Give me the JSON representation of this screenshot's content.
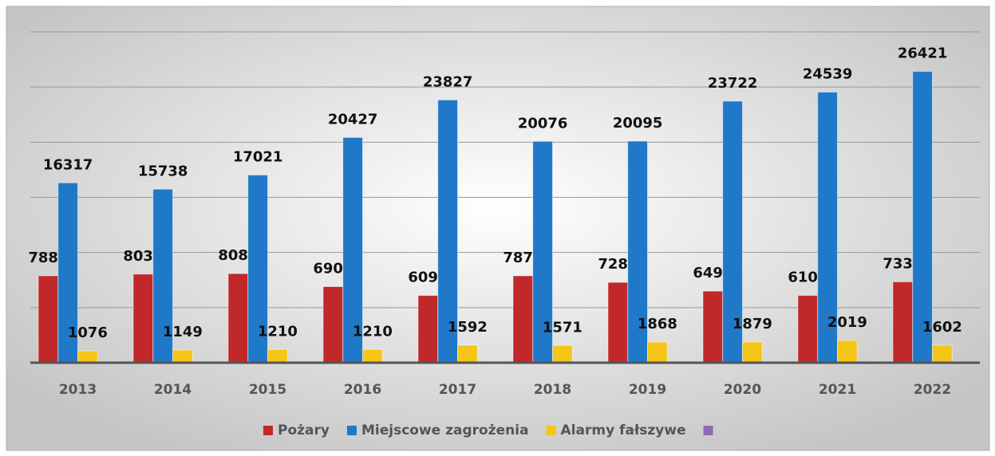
{
  "chart_data": {
    "type": "bar",
    "categories": [
      "2013",
      "2014",
      "2015",
      "2016",
      "2017",
      "2018",
      "2019",
      "2020",
      "2021",
      "2022"
    ],
    "series": [
      {
        "name": "Pożary",
        "color": "#c0282a",
        "values": [
          7881,
          8033,
          8081,
          6902,
          6099,
          7879,
          7287,
          6496,
          6101,
          7336
        ]
      },
      {
        "name": "Miejscowe zagrożenia",
        "color": "#1f78c8",
        "values": [
          16317,
          15738,
          17021,
          20427,
          23827,
          20076,
          20095,
          23722,
          24539,
          26421
        ]
      },
      {
        "name": "Alarmy fałszywe",
        "color": "#f5c518",
        "values": [
          1076,
          1149,
          1210,
          1210,
          1592,
          1571,
          1868,
          1879,
          2019,
          1602
        ]
      },
      {
        "color": "#8e6bb5",
        "values": [
          null,
          null,
          null,
          null,
          null,
          null,
          null,
          null,
          null,
          null
        ]
      }
    ],
    "ylim": [
      0,
      30000
    ],
    "yticks": [
      0,
      5000,
      10000,
      15000,
      20000,
      25000,
      30000
    ],
    "grid": true
  }
}
